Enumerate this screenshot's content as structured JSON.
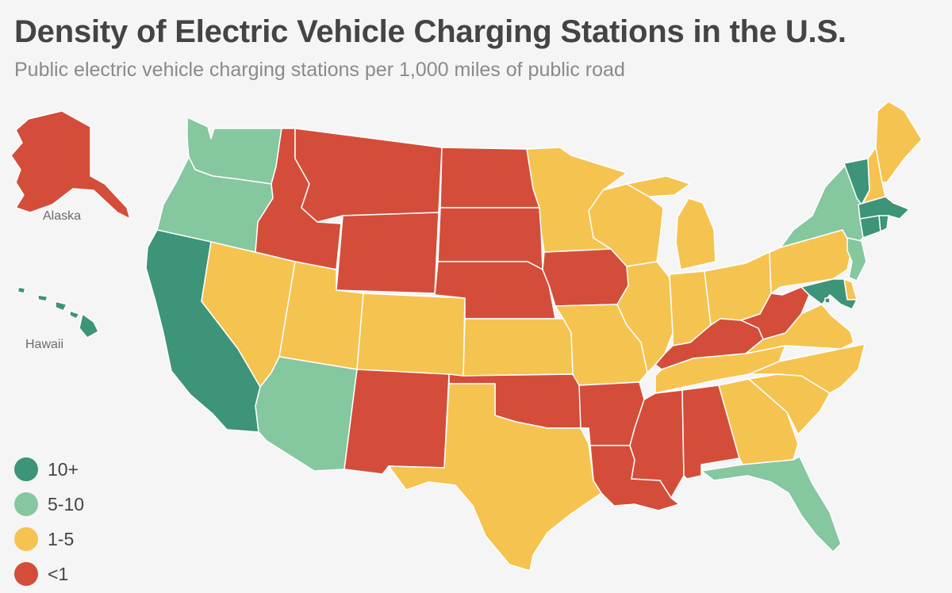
{
  "title": "Density of Electric Vehicle Charging Stations in the U.S.",
  "subtitle": "Public electric vehicle charging stations per 1,000 miles of public road",
  "colors": {
    "10+": "#3d9478",
    "5-10": "#85c79f",
    "1-5": "#f5c350",
    "<1": "#d44d3a",
    "border": "#ffffff",
    "background": "#f5f5f5"
  },
  "legend": [
    {
      "label": "10+",
      "category": "10+"
    },
    {
      "label": "5-10",
      "category": "5-10"
    },
    {
      "label": "1-5",
      "category": "1-5"
    },
    {
      "label": "<1",
      "category": "<1"
    }
  ],
  "insets": {
    "alaska_label": "Alaska",
    "hawaii_label": "Hawaii"
  },
  "states": {
    "WA": "5-10",
    "OR": "5-10",
    "CA": "10+",
    "NV": "1-5",
    "ID": "<1",
    "MT": "<1",
    "WY": "<1",
    "UT": "1-5",
    "AZ": "5-10",
    "CO": "1-5",
    "NM": "<1",
    "ND": "<1",
    "SD": "<1",
    "NE": "<1",
    "KS": "1-5",
    "OK": "<1",
    "TX": "1-5",
    "MN": "1-5",
    "IA": "<1",
    "MO": "1-5",
    "AR": "<1",
    "LA": "<1",
    "WI": "1-5",
    "IL": "1-5",
    "MI": "1-5",
    "IN": "1-5",
    "OH": "1-5",
    "KY": "<1",
    "TN": "1-5",
    "MS": "<1",
    "AL": "<1",
    "GA": "1-5",
    "FL": "5-10",
    "SC": "1-5",
    "NC": "1-5",
    "VA": "1-5",
    "WV": "<1",
    "PA": "1-5",
    "NY": "5-10",
    "VT": "10+",
    "NH": "1-5",
    "ME": "1-5",
    "MA": "10+",
    "RI": "10+",
    "CT": "10+",
    "NJ": "5-10",
    "DE": "1-5",
    "MD": "10+",
    "DC": "10+",
    "AK": "<1",
    "HI": "10+"
  }
}
